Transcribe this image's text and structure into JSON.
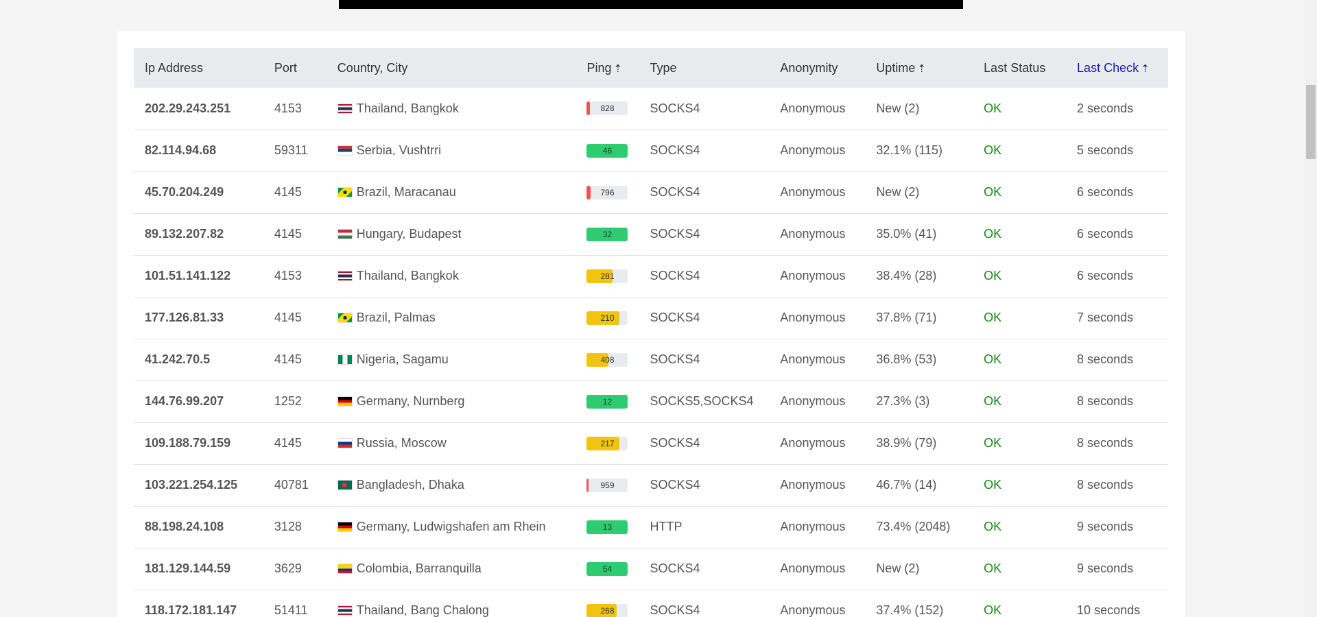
{
  "table": {
    "headers": [
      {
        "label": "Ip Address",
        "sort": false,
        "active": false
      },
      {
        "label": "Port",
        "sort": false,
        "active": false
      },
      {
        "label": "Country, City",
        "sort": false,
        "active": false
      },
      {
        "label": "Ping",
        "sort": true,
        "active": false
      },
      {
        "label": "Type",
        "sort": false,
        "active": false
      },
      {
        "label": "Anonymity",
        "sort": false,
        "active": false
      },
      {
        "label": "Uptime",
        "sort": true,
        "active": false
      },
      {
        "label": "Last Status",
        "sort": false,
        "active": false
      },
      {
        "label": "Last Check",
        "sort": true,
        "active": true
      }
    ],
    "sort_arrow": "⇡",
    "rows": [
      {
        "ip": "202.29.243.251",
        "port": "4153",
        "flag": "flag-thailand-icon",
        "location": "Thailand, Bangkok",
        "ping": "828",
        "ping_level": 0.08,
        "ping_color": "#f05252",
        "type": "SOCKS4",
        "anonymity": "Anonymous",
        "uptime": "New (2)",
        "status": "OK",
        "last_check": "2 seconds"
      },
      {
        "ip": "82.114.94.68",
        "port": "59311",
        "flag": "flag-serbia-icon",
        "location": "Serbia, Vushtrri",
        "ping": "46",
        "ping_level": 1.0,
        "ping_color": "#2ecc71",
        "type": "SOCKS4",
        "anonymity": "Anonymous",
        "uptime": "32.1% (115)",
        "status": "OK",
        "last_check": "5 seconds"
      },
      {
        "ip": "45.70.204.249",
        "port": "4145",
        "flag": "flag-brazil-icon",
        "location": "Brazil, Maracanau",
        "ping": "796",
        "ping_level": 0.1,
        "ping_color": "#f05252",
        "type": "SOCKS4",
        "anonymity": "Anonymous",
        "uptime": "New (2)",
        "status": "OK",
        "last_check": "6 seconds"
      },
      {
        "ip": "89.132.207.82",
        "port": "4145",
        "flag": "flag-hungary-icon",
        "location": "Hungary, Budapest",
        "ping": "32",
        "ping_level": 1.0,
        "ping_color": "#2ecc71",
        "type": "SOCKS4",
        "anonymity": "Anonymous",
        "uptime": "35.0% (41)",
        "status": "OK",
        "last_check": "6 seconds"
      },
      {
        "ip": "101.51.141.122",
        "port": "4153",
        "flag": "flag-thailand-icon",
        "location": "Thailand, Bangkok",
        "ping": "281",
        "ping_level": 0.62,
        "ping_color": "#f1c40f",
        "type": "SOCKS4",
        "anonymity": "Anonymous",
        "uptime": "38.4% (28)",
        "status": "OK",
        "last_check": "6 seconds"
      },
      {
        "ip": "177.126.81.33",
        "port": "4145",
        "flag": "flag-brazil-icon",
        "location": "Brazil, Palmas",
        "ping": "210",
        "ping_level": 0.8,
        "ping_color": "#f1c40f",
        "type": "SOCKS4",
        "anonymity": "Anonymous",
        "uptime": "37.8% (71)",
        "status": "OK",
        "last_check": "7 seconds"
      },
      {
        "ip": "41.242.70.5",
        "port": "4145",
        "flag": "flag-nigeria-icon",
        "location": "Nigeria, Sagamu",
        "ping": "408",
        "ping_level": 0.52,
        "ping_color": "#f1c40f",
        "type": "SOCKS4",
        "anonymity": "Anonymous",
        "uptime": "36.8% (53)",
        "status": "OK",
        "last_check": "8 seconds"
      },
      {
        "ip": "144.76.99.207",
        "port": "1252",
        "flag": "flag-germany-icon",
        "location": "Germany, Nurnberg",
        "ping": "12",
        "ping_level": 1.0,
        "ping_color": "#2ecc71",
        "type": "SOCKS5,SOCKS4",
        "anonymity": "Anonymous",
        "uptime": "27.3% (3)",
        "status": "OK",
        "last_check": "8 seconds"
      },
      {
        "ip": "109.188.79.159",
        "port": "4145",
        "flag": "flag-russia-icon",
        "location": "Russia, Moscow",
        "ping": "217",
        "ping_level": 0.8,
        "ping_color": "#f1c40f",
        "type": "SOCKS4",
        "anonymity": "Anonymous",
        "uptime": "38.9% (79)",
        "status": "OK",
        "last_check": "8 seconds"
      },
      {
        "ip": "103.221.254.125",
        "port": "40781",
        "flag": "flag-bangladesh-icon",
        "location": "Bangladesh, Dhaka",
        "ping": "959",
        "ping_level": 0.04,
        "ping_color": "#f05252",
        "type": "SOCKS4",
        "anonymity": "Anonymous",
        "uptime": "46.7% (14)",
        "status": "OK",
        "last_check": "8 seconds"
      },
      {
        "ip": "88.198.24.108",
        "port": "3128",
        "flag": "flag-germany-icon",
        "location": "Germany, Ludwigshafen am Rhein",
        "ping": "13",
        "ping_level": 1.0,
        "ping_color": "#2ecc71",
        "type": "HTTP",
        "anonymity": "Anonymous",
        "uptime": "73.4% (2048)",
        "status": "OK",
        "last_check": "9 seconds"
      },
      {
        "ip": "181.129.144.59",
        "port": "3629",
        "flag": "flag-colombia-icon",
        "location": "Colombia, Barranquilla",
        "ping": "54",
        "ping_level": 1.0,
        "ping_color": "#2ecc71",
        "type": "SOCKS4",
        "anonymity": "Anonymous",
        "uptime": "New (2)",
        "status": "OK",
        "last_check": "9 seconds"
      },
      {
        "ip": "118.172.181.147",
        "port": "51411",
        "flag": "flag-thailand-icon",
        "location": "Thailand, Bang Chalong",
        "ping": "268",
        "ping_level": 0.72,
        "ping_color": "#f1c40f",
        "type": "SOCKS4",
        "anonymity": "Anonymous",
        "uptime": "37.4% (152)",
        "status": "OK",
        "last_check": "10 seconds"
      }
    ]
  },
  "colors": {
    "ok": "#138a13",
    "sort_active": "#1a1aa6",
    "header_bg": "#e9ecef"
  }
}
